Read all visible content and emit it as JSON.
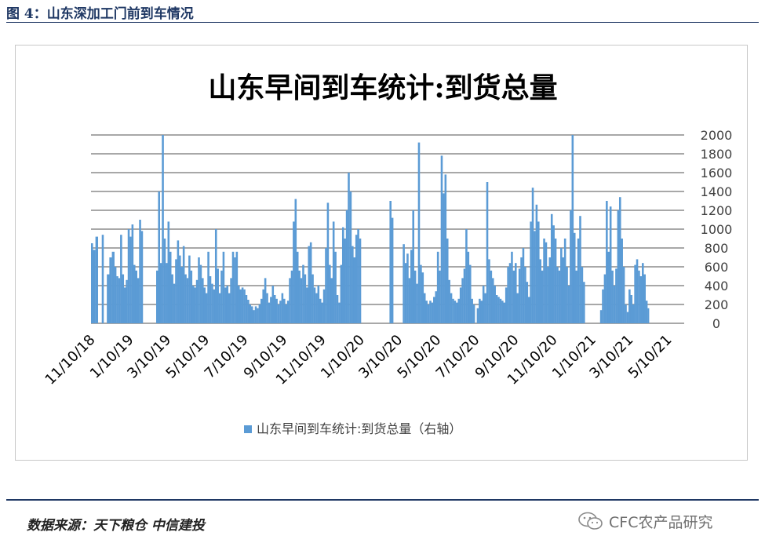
{
  "figure": {
    "title": "图 4：山东深加工门前到车情况",
    "source": "数据来源：天下粮仓 中信建投",
    "watermark_text": "CFC农产品研究",
    "watermark_icon": "wechat-icon"
  },
  "colors": {
    "bar": "#5b9bd5",
    "grid": "#8c8c8c",
    "rule": "#1f3864",
    "text": "#404040"
  },
  "chart_data": {
    "type": "bar",
    "title": "山东早间到车统计:到货总量",
    "xlabel": "",
    "ylabel": "",
    "y_axis_side": "right",
    "ylim": [
      0,
      2000
    ],
    "yticks": [
      0,
      200,
      400,
      600,
      800,
      1000,
      1200,
      1400,
      1600,
      1800,
      2000
    ],
    "xlim": [
      "2018-11-10",
      "2021-06-05"
    ],
    "xtick_labels": [
      "11/10/18",
      "1/10/19",
      "3/10/19",
      "5/10/19",
      "7/10/19",
      "9/10/19",
      "11/10/19",
      "1/10/20",
      "3/10/20",
      "5/10/20",
      "7/10/20",
      "9/10/20",
      "11/10/20",
      "1/10/21",
      "3/10/21",
      "5/10/21"
    ],
    "xtick_dates": [
      "2018-11-10",
      "2019-01-10",
      "2019-03-10",
      "2019-05-10",
      "2019-07-10",
      "2019-09-10",
      "2019-11-10",
      "2020-01-10",
      "2020-03-10",
      "2020-05-10",
      "2020-07-10",
      "2020-09-10",
      "2020-11-10",
      "2021-01-10",
      "2021-03-10",
      "2021-05-10"
    ],
    "grid": true,
    "legend_position": "bottom",
    "series": [
      {
        "name": "山东早间到车统计:到货总量（右轴）",
        "color": "#5b9bd5",
        "points": [
          [
            "2018-11-10",
            850
          ],
          [
            "2018-11-13",
            780
          ],
          [
            "2018-11-17",
            920
          ],
          [
            "2018-11-21",
            0
          ],
          [
            "2018-11-27",
            940
          ],
          [
            "2018-11-30",
            0
          ],
          [
            "2018-12-05",
            520
          ],
          [
            "2018-12-09",
            700
          ],
          [
            "2018-12-13",
            760
          ],
          [
            "2018-12-17",
            600
          ],
          [
            "2018-12-20",
            500
          ],
          [
            "2018-12-23",
            480
          ],
          [
            "2018-12-26",
            940
          ],
          [
            "2018-12-29",
            520
          ],
          [
            "2019-01-01",
            380
          ],
          [
            "2019-01-04",
            460
          ],
          [
            "2019-01-07",
            1000
          ],
          [
            "2019-01-10",
            920
          ],
          [
            "2019-01-13",
            1050
          ],
          [
            "2019-01-16",
            620
          ],
          [
            "2019-01-19",
            560
          ],
          [
            "2019-01-22",
            480
          ],
          [
            "2019-01-25",
            1100
          ],
          [
            "2019-01-28",
            980
          ],
          [
            "2019-01-31",
            0
          ],
          [
            "2019-02-18",
            0
          ],
          [
            "2019-02-21",
            560
          ],
          [
            "2019-02-24",
            1400
          ],
          [
            "2019-02-27",
            640
          ],
          [
            "2019-03-02",
            2000
          ],
          [
            "2019-03-05",
            900
          ],
          [
            "2019-03-08",
            640
          ],
          [
            "2019-03-11",
            1080
          ],
          [
            "2019-03-14",
            760
          ],
          [
            "2019-03-17",
            520
          ],
          [
            "2019-03-20",
            420
          ],
          [
            "2019-03-23",
            680
          ],
          [
            "2019-03-26",
            880
          ],
          [
            "2019-03-29",
            720
          ],
          [
            "2019-04-01",
            600
          ],
          [
            "2019-04-04",
            820
          ],
          [
            "2019-04-07",
            520
          ],
          [
            "2019-04-10",
            480
          ],
          [
            "2019-04-13",
            720
          ],
          [
            "2019-04-16",
            560
          ],
          [
            "2019-04-19",
            400
          ],
          [
            "2019-04-22",
            380
          ],
          [
            "2019-04-25",
            460
          ],
          [
            "2019-04-28",
            700
          ],
          [
            "2019-05-01",
            620
          ],
          [
            "2019-05-04",
            480
          ],
          [
            "2019-05-07",
            380
          ],
          [
            "2019-05-10",
            320
          ],
          [
            "2019-05-13",
            760
          ],
          [
            "2019-05-16",
            500
          ],
          [
            "2019-05-19",
            420
          ],
          [
            "2019-05-22",
            360
          ],
          [
            "2019-05-25",
            1000
          ],
          [
            "2019-05-28",
            580
          ],
          [
            "2019-05-31",
            320
          ],
          [
            "2019-06-03",
            560
          ],
          [
            "2019-06-06",
            760
          ],
          [
            "2019-06-09",
            380
          ],
          [
            "2019-06-12",
            400
          ],
          [
            "2019-06-15",
            320
          ],
          [
            "2019-06-18",
            480
          ],
          [
            "2019-06-21",
            760
          ],
          [
            "2019-06-24",
            700
          ],
          [
            "2019-06-27",
            760
          ],
          [
            "2019-06-30",
            400
          ],
          [
            "2019-07-03",
            360
          ],
          [
            "2019-07-06",
            380
          ],
          [
            "2019-07-09",
            360
          ],
          [
            "2019-07-12",
            300
          ],
          [
            "2019-07-15",
            250
          ],
          [
            "2019-07-18",
            200
          ],
          [
            "2019-07-21",
            180
          ],
          [
            "2019-07-24",
            140
          ],
          [
            "2019-07-27",
            180
          ],
          [
            "2019-07-30",
            160
          ],
          [
            "2019-08-02",
            200
          ],
          [
            "2019-08-05",
            260
          ],
          [
            "2019-08-08",
            360
          ],
          [
            "2019-08-11",
            480
          ],
          [
            "2019-08-14",
            320
          ],
          [
            "2019-08-17",
            220
          ],
          [
            "2019-08-20",
            280
          ],
          [
            "2019-08-23",
            400
          ],
          [
            "2019-08-26",
            300
          ],
          [
            "2019-08-29",
            260
          ],
          [
            "2019-09-01",
            200
          ],
          [
            "2019-09-04",
            240
          ],
          [
            "2019-09-07",
            320
          ],
          [
            "2019-09-10",
            260
          ],
          [
            "2019-09-13",
            200
          ],
          [
            "2019-09-16",
            240
          ],
          [
            "2019-09-19",
            480
          ],
          [
            "2019-09-22",
            560
          ],
          [
            "2019-09-25",
            1080
          ],
          [
            "2019-09-28",
            1320
          ],
          [
            "2019-10-01",
            760
          ],
          [
            "2019-10-04",
            560
          ],
          [
            "2019-10-07",
            480
          ],
          [
            "2019-10-10",
            620
          ],
          [
            "2019-10-13",
            520
          ],
          [
            "2019-10-16",
            380
          ],
          [
            "2019-10-19",
            820
          ],
          [
            "2019-10-22",
            860
          ],
          [
            "2019-10-25",
            520
          ],
          [
            "2019-10-28",
            380
          ],
          [
            "2019-10-31",
            320
          ],
          [
            "2019-11-03",
            400
          ],
          [
            "2019-11-06",
            260
          ],
          [
            "2019-11-09",
            220
          ],
          [
            "2019-11-12",
            360
          ],
          [
            "2019-11-15",
            800
          ],
          [
            "2019-11-18",
            1280
          ],
          [
            "2019-11-21",
            620
          ],
          [
            "2019-11-24",
            480
          ],
          [
            "2019-11-27",
            1080
          ],
          [
            "2019-11-30",
            760
          ],
          [
            "2019-12-03",
            300
          ],
          [
            "2019-12-06",
            220
          ],
          [
            "2019-12-09",
            620
          ],
          [
            "2019-12-12",
            1020
          ],
          [
            "2019-12-15",
            900
          ],
          [
            "2019-12-18",
            1200
          ],
          [
            "2019-12-21",
            1600
          ],
          [
            "2019-12-24",
            1400
          ],
          [
            "2019-12-27",
            820
          ],
          [
            "2019-12-30",
            700
          ],
          [
            "2020-01-02",
            940
          ],
          [
            "2020-01-05",
            1000
          ],
          [
            "2020-01-08",
            900
          ],
          [
            "2020-01-11",
            0
          ],
          [
            "2020-02-22",
            0
          ],
          [
            "2020-02-25",
            1300
          ],
          [
            "2020-02-28",
            1120
          ],
          [
            "2020-03-02",
            0
          ],
          [
            "2020-03-14",
            0
          ],
          [
            "2020-03-17",
            840
          ],
          [
            "2020-03-20",
            640
          ],
          [
            "2020-03-23",
            740
          ],
          [
            "2020-03-26",
            480
          ],
          [
            "2020-03-29",
            780
          ],
          [
            "2020-04-01",
            1200
          ],
          [
            "2020-04-04",
            560
          ],
          [
            "2020-04-07",
            420
          ],
          [
            "2020-04-10",
            1920
          ],
          [
            "2020-04-13",
            620
          ],
          [
            "2020-04-16",
            540
          ],
          [
            "2020-04-19",
            320
          ],
          [
            "2020-04-22",
            240
          ],
          [
            "2020-04-25",
            200
          ],
          [
            "2020-04-28",
            240
          ],
          [
            "2020-05-01",
            220
          ],
          [
            "2020-05-04",
            280
          ],
          [
            "2020-05-07",
            340
          ],
          [
            "2020-05-10",
            760
          ],
          [
            "2020-05-13",
            560
          ],
          [
            "2020-05-16",
            1780
          ],
          [
            "2020-05-19",
            1380
          ],
          [
            "2020-05-22",
            1580
          ],
          [
            "2020-05-25",
            900
          ],
          [
            "2020-05-28",
            460
          ],
          [
            "2020-05-31",
            320
          ],
          [
            "2020-06-03",
            260
          ],
          [
            "2020-06-06",
            240
          ],
          [
            "2020-06-09",
            220
          ],
          [
            "2020-06-12",
            260
          ],
          [
            "2020-06-15",
            380
          ],
          [
            "2020-06-18",
            480
          ],
          [
            "2020-06-21",
            580
          ],
          [
            "2020-06-24",
            1000
          ],
          [
            "2020-06-27",
            760
          ],
          [
            "2020-06-30",
            620
          ],
          [
            "2020-07-03",
            260
          ],
          [
            "2020-07-06",
            200
          ],
          [
            "2020-07-09",
            0
          ],
          [
            "2020-07-12",
            160
          ],
          [
            "2020-07-15",
            260
          ],
          [
            "2020-07-18",
            240
          ],
          [
            "2020-07-21",
            400
          ],
          [
            "2020-07-24",
            320
          ],
          [
            "2020-07-27",
            1500
          ],
          [
            "2020-07-30",
            680
          ],
          [
            "2020-08-02",
            560
          ],
          [
            "2020-08-05",
            480
          ],
          [
            "2020-08-08",
            400
          ],
          [
            "2020-08-11",
            300
          ],
          [
            "2020-08-14",
            280
          ],
          [
            "2020-08-17",
            260
          ],
          [
            "2020-08-20",
            240
          ],
          [
            "2020-08-23",
            220
          ],
          [
            "2020-08-26",
            380
          ],
          [
            "2020-08-29",
            600
          ],
          [
            "2020-09-01",
            640
          ],
          [
            "2020-09-04",
            760
          ],
          [
            "2020-09-07",
            560
          ],
          [
            "2020-09-10",
            640
          ],
          [
            "2020-09-13",
            320
          ],
          [
            "2020-09-16",
            580
          ],
          [
            "2020-09-19",
            700
          ],
          [
            "2020-09-22",
            800
          ],
          [
            "2020-09-25",
            600
          ],
          [
            "2020-09-28",
            440
          ],
          [
            "2020-10-01",
            280
          ],
          [
            "2020-10-04",
            1080
          ],
          [
            "2020-10-07",
            1440
          ],
          [
            "2020-10-10",
            980
          ],
          [
            "2020-10-13",
            1260
          ],
          [
            "2020-10-16",
            1080
          ],
          [
            "2020-10-19",
            680
          ],
          [
            "2020-10-22",
            560
          ],
          [
            "2020-10-25",
            900
          ],
          [
            "2020-10-28",
            860
          ],
          [
            "2020-10-31",
            600
          ],
          [
            "2020-11-03",
            700
          ],
          [
            "2020-11-06",
            1160
          ],
          [
            "2020-11-09",
            1040
          ],
          [
            "2020-11-12",
            900
          ],
          [
            "2020-11-15",
            600
          ],
          [
            "2020-11-18",
            560
          ],
          [
            "2020-11-21",
            800
          ],
          [
            "2020-11-24",
            700
          ],
          [
            "2020-11-27",
            900
          ],
          [
            "2020-11-30",
            600
          ],
          [
            "2020-12-03",
            400
          ],
          [
            "2020-12-06",
            1200
          ],
          [
            "2020-12-09",
            2000
          ],
          [
            "2020-12-12",
            960
          ],
          [
            "2020-12-15",
            560
          ],
          [
            "2020-12-18",
            900
          ],
          [
            "2020-12-21",
            1140
          ],
          [
            "2020-12-24",
            600
          ],
          [
            "2020-12-27",
            440
          ],
          [
            "2020-12-30",
            0
          ],
          [
            "2021-01-20",
            0
          ],
          [
            "2021-01-23",
            140
          ],
          [
            "2021-01-26",
            360
          ],
          [
            "2021-01-29",
            520
          ],
          [
            "2021-02-01",
            1300
          ],
          [
            "2021-02-04",
            760
          ],
          [
            "2021-02-07",
            1240
          ],
          [
            "2021-02-10",
            560
          ],
          [
            "2021-02-13",
            400
          ],
          [
            "2021-02-16",
            580
          ],
          [
            "2021-02-19",
            1200
          ],
          [
            "2021-02-22",
            1340
          ],
          [
            "2021-02-25",
            900
          ],
          [
            "2021-02-28",
            600
          ],
          [
            "2021-03-03",
            200
          ],
          [
            "2021-03-06",
            120
          ],
          [
            "2021-03-09",
            360
          ],
          [
            "2021-03-12",
            300
          ],
          [
            "2021-03-15",
            200
          ],
          [
            "2021-03-18",
            620
          ],
          [
            "2021-03-21",
            680
          ],
          [
            "2021-03-24",
            560
          ],
          [
            "2021-03-27",
            500
          ],
          [
            "2021-03-30",
            640
          ],
          [
            "2021-04-02",
            520
          ],
          [
            "2021-04-05",
            240
          ],
          [
            "2021-04-08",
            160
          ]
        ]
      }
    ]
  }
}
